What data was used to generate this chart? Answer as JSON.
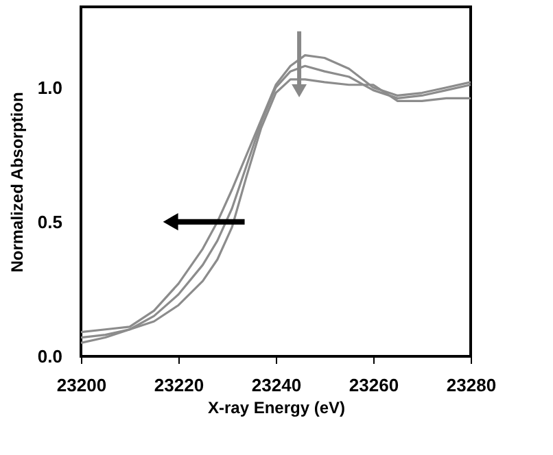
{
  "chart_data": {
    "type": "line",
    "xlabel": "X-ray Energy (eV)",
    "ylabel": "Normalized Absorption",
    "x": [
      23200,
      23205,
      23210,
      23215,
      23220,
      23225,
      23228,
      23231,
      23234,
      23237,
      23240,
      23243,
      23246,
      23250,
      23255,
      23260,
      23265,
      23270,
      23275,
      23280
    ],
    "series": [
      {
        "color": "#8c8c8c",
        "values": [
          0.09,
          0.1,
          0.11,
          0.17,
          0.27,
          0.4,
          0.5,
          0.62,
          0.75,
          0.88,
          1.01,
          1.08,
          1.12,
          1.11,
          1.07,
          1.0,
          0.97,
          0.98,
          1.0,
          1.02
        ]
      },
      {
        "color": "#8c8c8c",
        "values": [
          0.07,
          0.08,
          0.1,
          0.15,
          0.23,
          0.34,
          0.43,
          0.55,
          0.71,
          0.87,
          1.0,
          1.06,
          1.08,
          1.06,
          1.04,
          0.99,
          0.96,
          0.97,
          0.99,
          1.01
        ]
      },
      {
        "color": "#8c8c8c",
        "values": [
          0.05,
          0.07,
          0.1,
          0.13,
          0.19,
          0.28,
          0.36,
          0.48,
          0.67,
          0.85,
          0.98,
          1.03,
          1.03,
          1.02,
          1.01,
          1.01,
          0.95,
          0.95,
          0.96,
          0.96
        ]
      }
    ],
    "xlim": [
      23200,
      23280
    ],
    "xticks": [
      23200,
      23220,
      23240,
      23260,
      23280
    ],
    "ylim": [
      0,
      1.3
    ],
    "yticks": [
      {
        "value": 0,
        "label": "0.0"
      },
      {
        "value": 0.5,
        "label": "0.5"
      },
      {
        "value": 1,
        "label": "1.0"
      }
    ],
    "grid": false,
    "legend": false,
    "marker": "none",
    "line_style": "solid"
  }
}
